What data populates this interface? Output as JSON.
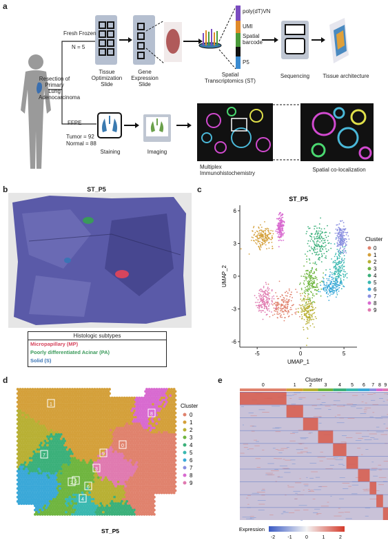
{
  "panel_labels": {
    "a": "a",
    "b": "b",
    "c": "c",
    "d": "d",
    "e": "e"
  },
  "panel_a": {
    "resection": "Resection of Primary Lung Adenocarcinoma",
    "fresh_frozen": "Fresh Frozen",
    "n5": "N = 5",
    "tissue_opt": "Tissue Optimization Slide",
    "gene_expr": "Gene Expression Slide",
    "st": "Spatial Transcriptomics (ST)",
    "seq": "Sequencing",
    "tissue_arch": "Tissue architecture",
    "barcode": [
      "poly(dT)VN",
      "UMI",
      "Spatial barcode",
      "P5"
    ],
    "ffpe": "FFPE",
    "tumor": "Tumor = 92",
    "normal": "Normal = 88",
    "staining": "Staining",
    "imaging": "Imaging",
    "mihc": "Multiplex Immunohistochemistry",
    "coloc": "Spatial co-localization"
  },
  "panel_b": {
    "title": "ST_P5",
    "legend_title": "Histologic subtypes",
    "subtypes": [
      {
        "label": "Micropapillary (MP)",
        "color": "#d6455d"
      },
      {
        "label": "Poorly differentiated Acinar (PA)",
        "color": "#3a9a5a"
      },
      {
        "label": "Solid (S)",
        "color": "#3a74b5"
      }
    ]
  },
  "panel_c": {
    "chart_data": {
      "type": "scatter",
      "title": "ST_P5",
      "xlabel": "UMAP_1",
      "ylabel": "UMAP_2",
      "xlim": [
        -7,
        6.5
      ],
      "ylim": [
        -6.5,
        6.5
      ],
      "xticks": [
        "-5",
        "0",
        "5"
      ],
      "yticks": [
        "6",
        "3",
        "0",
        "-3",
        "-6"
      ],
      "legend_title": "Cluster",
      "legend_position": "right",
      "series": [
        {
          "name": "0",
          "color": "#e0826d",
          "center": [
            -2.0,
            -2.7
          ],
          "spread": [
            1.1,
            0.9
          ]
        },
        {
          "name": "1",
          "color": "#d4a03a",
          "center": [
            -4.3,
            3.6
          ],
          "spread": [
            0.8,
            0.6
          ]
        },
        {
          "name": "2",
          "color": "#b8b034",
          "center": [
            0.8,
            -3.3
          ],
          "spread": [
            0.6,
            1.0
          ]
        },
        {
          "name": "3",
          "color": "#6fb53f",
          "center": [
            1.2,
            -0.5
          ],
          "spread": [
            0.7,
            1.1
          ]
        },
        {
          "name": "4",
          "color": "#3bb07a",
          "center": [
            2.0,
            3.0
          ],
          "spread": [
            0.8,
            1.2
          ]
        },
        {
          "name": "5",
          "color": "#3ab8b0",
          "center": [
            4.4,
            0.8
          ],
          "spread": [
            0.6,
            1.2
          ]
        },
        {
          "name": "6",
          "color": "#3aa8d8",
          "center": [
            3.6,
            -0.9
          ],
          "spread": [
            0.7,
            0.6
          ]
        },
        {
          "name": "7",
          "color": "#8a8fe0",
          "center": [
            4.7,
            3.6
          ],
          "spread": [
            0.4,
            0.9
          ]
        },
        {
          "name": "8",
          "color": "#d86ad0",
          "center": [
            -2.3,
            4.5
          ],
          "spread": [
            0.3,
            0.8
          ]
        },
        {
          "name": "9",
          "color": "#e07ab0",
          "center": [
            -4.1,
            -2.2
          ],
          "spread": [
            0.6,
            0.8
          ]
        }
      ]
    }
  },
  "panel_d": {
    "title": "ST_P5",
    "legend_title": "Cluster",
    "clusters": [
      "0",
      "1",
      "2",
      "3",
      "4",
      "5",
      "6",
      "7",
      "8",
      "9"
    ],
    "colors": [
      "#e0826d",
      "#d4a03a",
      "#b8b034",
      "#6fb53f",
      "#3bb07a",
      "#3ab8b0",
      "#3aa8d8",
      "#8a8fe0",
      "#d86ad0",
      "#e07ab0"
    ],
    "labels": [
      "1",
      "0",
      "8",
      "5",
      "3",
      "9",
      "6",
      "2",
      "4",
      "7"
    ]
  },
  "panel_e": {
    "cluster_title": "Cluster",
    "clusters": [
      "0",
      "1",
      "2",
      "3",
      "4",
      "5",
      "6",
      "7",
      "8",
      "9"
    ],
    "legend_title": "Expression",
    "ticks": [
      "-2",
      "-1",
      "0",
      "1",
      "2"
    ]
  }
}
